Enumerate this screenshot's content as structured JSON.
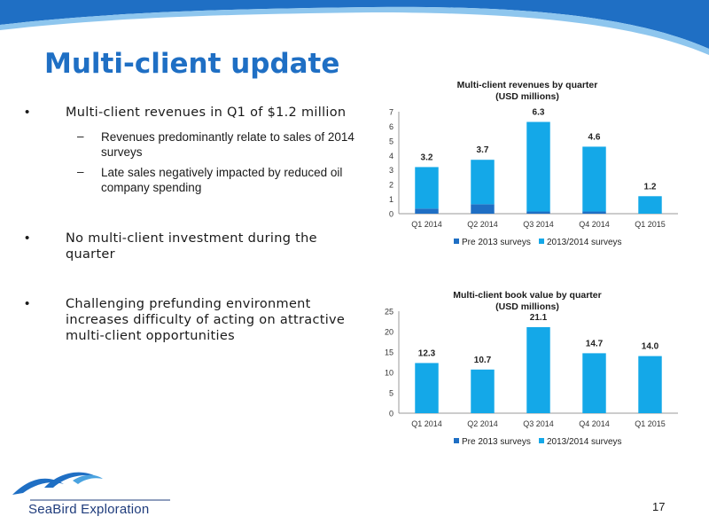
{
  "title": "Multi-client update",
  "bullets": [
    {
      "text": "Multi-client revenues in Q1 of $1.2 million",
      "subs": [
        "Revenues predominantly relate to sales of 2014 surveys",
        "Late sales negatively impacted by reduced oil company spending"
      ]
    },
    {
      "text": "No multi-client investment during the quarter"
    },
    {
      "text": "Challenging prefunding environment increases difficulty of acting on attractive multi-client opportunities"
    }
  ],
  "colors": {
    "title": "#1f6fc4",
    "pre2013": "#1f6fc4",
    "y2013_2014": "#14a8e8",
    "header_blue": "#1f6fc4"
  },
  "chart_data": [
    {
      "type": "bar",
      "stacked": true,
      "title_lines": [
        "Multi-client revenues by quarter",
        "(USD millions)"
      ],
      "categories": [
        "Q1 2014",
        "Q2 2014",
        "Q3 2014",
        "Q4 2014",
        "Q1 2015"
      ],
      "series": [
        {
          "name": "Pre 2013 surveys",
          "values": [
            0.35,
            0.65,
            0.15,
            0.15,
            0.0
          ]
        },
        {
          "name": "2013/2014 surveys",
          "values": [
            2.85,
            3.05,
            6.15,
            4.45,
            1.2
          ]
        }
      ],
      "totals_labels": [
        "3.2",
        "3.7",
        "6.3",
        "4.6",
        "1.2"
      ],
      "totals": [
        3.2,
        3.7,
        6.3,
        4.6,
        1.2
      ],
      "ylim": [
        0,
        7
      ],
      "yticks": [
        0,
        1,
        2,
        3,
        4,
        5,
        6,
        7
      ],
      "legend_position": "bottom"
    },
    {
      "type": "bar",
      "stacked": true,
      "title_lines": [
        "Multi-client book value by quarter",
        "(USD millions)"
      ],
      "categories": [
        "Q1 2014",
        "Q2 2014",
        "Q3 2014",
        "Q4 2014",
        "Q1 2015"
      ],
      "series": [
        {
          "name": "Pre 2013 surveys",
          "values": [
            0,
            0,
            0,
            0,
            0
          ]
        },
        {
          "name": "2013/2014 surveys",
          "values": [
            12.3,
            10.7,
            21.1,
            14.7,
            14.0
          ]
        }
      ],
      "totals_labels": [
        "12.3",
        "10.7",
        "21.1",
        "14.7",
        "14.0"
      ],
      "totals": [
        12.3,
        10.7,
        21.1,
        14.7,
        14.0
      ],
      "ylim": [
        0,
        25
      ],
      "yticks": [
        0,
        5,
        10,
        15,
        20,
        25
      ],
      "legend_position": "bottom"
    }
  ],
  "footer": {
    "brand": "SeaBird Exploration",
    "page_number": "17"
  }
}
